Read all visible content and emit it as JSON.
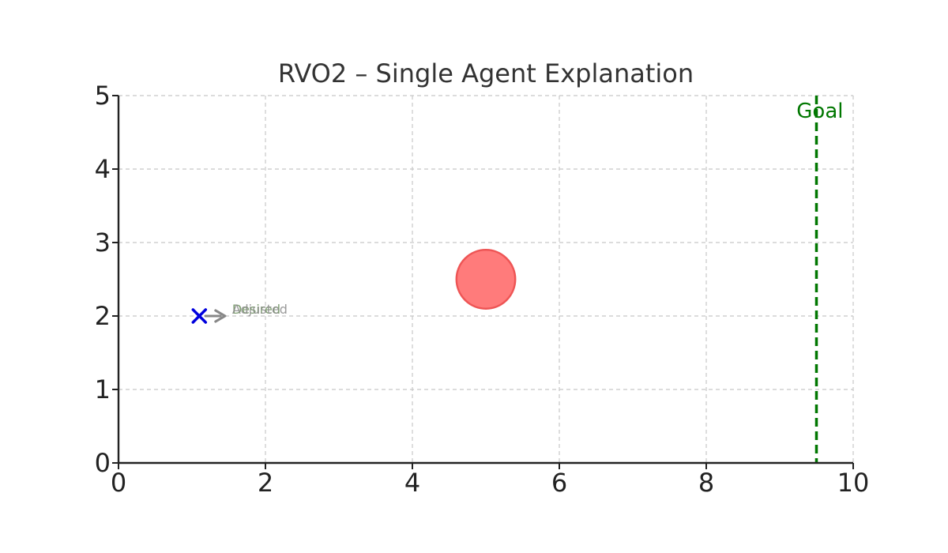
{
  "chart_data": {
    "type": "scatter",
    "title": "RVO2 – Single Agent Explanation",
    "xlabel": "",
    "ylabel": "",
    "xlim": [
      0,
      10
    ],
    "ylim": [
      0,
      5
    ],
    "xticks": [
      0,
      2,
      4,
      6,
      8,
      10
    ],
    "yticks": [
      0,
      1,
      2,
      3,
      4,
      5
    ],
    "grid": true,
    "agent": {
      "x": 1.1,
      "y": 2.0,
      "marker": "x",
      "color": "#0000dd"
    },
    "obstacle": {
      "x": 5.0,
      "y": 2.5,
      "radius": 0.4,
      "color": "#ff7b7b",
      "edge_color": "#ee5555"
    },
    "goal": {
      "x": 9.5,
      "label": "Goal",
      "color": "#007700"
    },
    "vectors": [
      {
        "name": "Desired",
        "x": 1.1,
        "y": 2.0,
        "dx": 0.35,
        "dy": 0.0,
        "label": "Desired",
        "color": "#888888",
        "label_color": "#6a8f5a"
      },
      {
        "name": "Adjusted",
        "x": 1.1,
        "y": 2.0,
        "dx": 0.35,
        "dy": 0.0,
        "label": "Adjusted",
        "color": "#888888",
        "label_color": "#8a8a8a"
      }
    ]
  }
}
